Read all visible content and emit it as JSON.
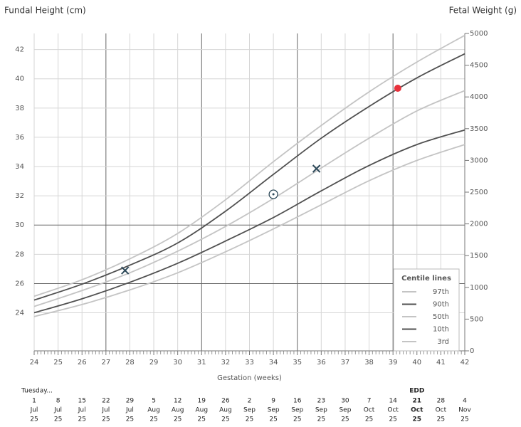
{
  "chart_data": {
    "type": "line",
    "left_title": "Fundal Height (cm)",
    "right_title": "Fetal Weight (g)",
    "xlabel": "Gestation (weeks)",
    "xlim": [
      24,
      42
    ],
    "xticks": [
      24,
      25,
      26,
      27,
      28,
      29,
      30,
      31,
      32,
      33,
      34,
      35,
      36,
      37,
      38,
      39,
      40,
      41,
      42
    ],
    "x_major_grid": [
      27,
      31,
      35,
      39
    ],
    "minor_per_tick": 7,
    "ylim": [
      21.4,
      43.1
    ],
    "yticks": [
      24,
      26,
      28,
      30,
      32,
      34,
      36,
      38,
      40,
      42
    ],
    "y_major_grid": [
      26,
      30
    ],
    "y2lim": [
      0,
      5000
    ],
    "y2ticks": [
      0,
      500,
      1000,
      1500,
      2000,
      2500,
      3000,
      3500,
      4000,
      4500,
      5000
    ],
    "x": [
      24,
      26,
      28,
      30,
      32,
      34,
      36,
      38,
      40,
      42
    ],
    "series": [
      {
        "name": "97th",
        "color": "#c4c4c4",
        "axis": "y2",
        "values": [
          860,
          1120,
          1450,
          1850,
          2380,
          2980,
          3550,
          4080,
          4550,
          4970
        ]
      },
      {
        "name": "90th",
        "color": "#505050",
        "axis": "y2",
        "values": [
          800,
          1050,
          1350,
          1700,
          2200,
          2780,
          3350,
          3850,
          4300,
          4680
        ]
      },
      {
        "name": "50th",
        "color": "#c4c4c4",
        "axis": "y2",
        "values": [
          700,
          950,
          1230,
          1570,
          1960,
          2400,
          2880,
          3350,
          3780,
          4100
        ]
      },
      {
        "name": "10th",
        "color": "#505050",
        "axis": "y2",
        "values": [
          600,
          820,
          1080,
          1380,
          1730,
          2100,
          2520,
          2920,
          3250,
          3480
        ]
      },
      {
        "name": "3rd",
        "color": "#c4c4c4",
        "axis": "y2",
        "values": [
          540,
          730,
          960,
          1230,
          1560,
          1920,
          2300,
          2680,
          3000,
          3250
        ]
      }
    ],
    "markers": [
      {
        "x": 27.8,
        "y": 1266,
        "shape": "cross",
        "color": "#2e4a5a"
      },
      {
        "x": 34,
        "y": 2466,
        "shape": "ring",
        "color": "#2e4a5a"
      },
      {
        "x": 35.8,
        "y": 2870,
        "shape": "cross",
        "color": "#2e4a5a"
      },
      {
        "x": 39.2,
        "y": 4137,
        "shape": "dot",
        "color": "#e8323c"
      }
    ],
    "legend": {
      "title": "Centile lines",
      "position": "lower right"
    },
    "date_table": {
      "note": "Tuesday...",
      "edd_label": "EDD",
      "edd_index": 16,
      "columns": [
        {
          "day": "1",
          "month": "Jul",
          "year": "25"
        },
        {
          "day": "8",
          "month": "Jul",
          "year": "25"
        },
        {
          "day": "15",
          "month": "Jul",
          "year": "25"
        },
        {
          "day": "22",
          "month": "Jul",
          "year": "25"
        },
        {
          "day": "29",
          "month": "Jul",
          "year": "25"
        },
        {
          "day": "5",
          "month": "Aug",
          "year": "25"
        },
        {
          "day": "12",
          "month": "Aug",
          "year": "25"
        },
        {
          "day": "19",
          "month": "Aug",
          "year": "25"
        },
        {
          "day": "26",
          "month": "Aug",
          "year": "25"
        },
        {
          "day": "2",
          "month": "Sep",
          "year": "25"
        },
        {
          "day": "9",
          "month": "Sep",
          "year": "25"
        },
        {
          "day": "16",
          "month": "Sep",
          "year": "25"
        },
        {
          "day": "23",
          "month": "Sep",
          "year": "25"
        },
        {
          "day": "30",
          "month": "Sep",
          "year": "25"
        },
        {
          "day": "7",
          "month": "Oct",
          "year": "25"
        },
        {
          "day": "14",
          "month": "Oct",
          "year": "25"
        },
        {
          "day": "21",
          "month": "Oct",
          "year": "25"
        },
        {
          "day": "28",
          "month": "Oct",
          "year": "25"
        },
        {
          "day": "4",
          "month": "Nov",
          "year": "25"
        }
      ]
    }
  }
}
